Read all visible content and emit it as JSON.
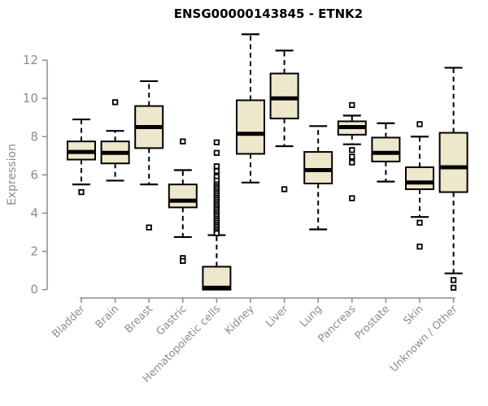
{
  "chart_data": {
    "type": "box",
    "title": "ENSG00000143845 - ETNK2",
    "ylabel": "Expression",
    "xlabel": "",
    "ylim": [
      0,
      12
    ],
    "yticks": [
      0,
      2,
      4,
      6,
      8,
      10,
      12
    ],
    "grid": false,
    "legend": null,
    "colors": {
      "box_fill": "#EDE7CC",
      "box_border": "#000000",
      "median": "#000000",
      "whisker": "#000000",
      "outlier_fill": "#FFFFFF",
      "axis": "#8C8C8C",
      "tick_label": "#8C8C8C",
      "title": "#000000"
    },
    "categories": [
      "Bladder",
      "Brain",
      "Breast",
      "Gastric",
      "Hematopoietic cells",
      "Kidney",
      "Liver",
      "Lung",
      "Pancreas",
      "Prostate",
      "Skin",
      "Unknown / Other"
    ],
    "series": [
      {
        "label": "Bladder",
        "whislo": 5.5,
        "q1": 6.8,
        "med": 7.2,
        "q3": 7.75,
        "whishi": 8.9,
        "outliers": [
          5.1
        ]
      },
      {
        "label": "Brain",
        "whislo": 5.7,
        "q1": 6.6,
        "med": 7.15,
        "q3": 7.75,
        "whishi": 8.3,
        "outliers": [
          9.8
        ]
      },
      {
        "label": "Breast",
        "whislo": 5.5,
        "q1": 7.4,
        "med": 8.5,
        "q3": 9.6,
        "whishi": 10.9,
        "outliers": [
          3.25
        ]
      },
      {
        "label": "Gastric",
        "whislo": 2.75,
        "q1": 4.3,
        "med": 4.65,
        "q3": 5.5,
        "whishi": 6.25,
        "outliers": [
          7.75,
          1.65,
          1.5
        ]
      },
      {
        "label": "Hematopoietic cells",
        "whislo": 0.0,
        "q1": 0.0,
        "med": 0.1,
        "q3": 1.2,
        "whishi": 2.85,
        "outliers": [
          7.7,
          7.15,
          6.45,
          6.2,
          5.9,
          5.7,
          5.5,
          5.4,
          5.3,
          5.2,
          5.1,
          5.0,
          4.9,
          4.8,
          4.7,
          4.6,
          4.5,
          4.4,
          4.3,
          4.2,
          4.1,
          4.0,
          3.9,
          3.8,
          3.7,
          3.6,
          3.5,
          3.4,
          3.3,
          3.2,
          3.1,
          3.0,
          2.95
        ]
      },
      {
        "label": "Kidney",
        "whislo": 5.6,
        "q1": 7.1,
        "med": 8.15,
        "q3": 9.9,
        "whishi": 13.35,
        "outliers": []
      },
      {
        "label": "Liver",
        "whislo": 7.5,
        "q1": 8.95,
        "med": 10.0,
        "q3": 11.3,
        "whishi": 12.5,
        "outliers": [
          5.25
        ]
      },
      {
        "label": "Lung",
        "whislo": 3.15,
        "q1": 5.55,
        "med": 6.25,
        "q3": 7.2,
        "whishi": 8.55,
        "outliers": []
      },
      {
        "label": "Pancreas",
        "whislo": 7.6,
        "q1": 8.1,
        "med": 8.5,
        "q3": 8.8,
        "whishi": 9.1,
        "outliers": [
          9.65,
          7.3,
          6.95,
          6.65,
          4.78
        ]
      },
      {
        "label": "Prostate",
        "whislo": 5.65,
        "q1": 6.7,
        "med": 7.15,
        "q3": 7.95,
        "whishi": 8.7,
        "outliers": []
      },
      {
        "label": "Skin",
        "whislo": 3.8,
        "q1": 5.25,
        "med": 5.6,
        "q3": 6.4,
        "whishi": 8.0,
        "outliers": [
          8.65,
          3.5,
          2.25
        ]
      },
      {
        "label": "Unknown / Other",
        "whislo": 0.85,
        "q1": 5.1,
        "med": 6.4,
        "q3": 8.2,
        "whishi": 11.6,
        "outliers": [
          0.5,
          0.1
        ]
      }
    ]
  }
}
